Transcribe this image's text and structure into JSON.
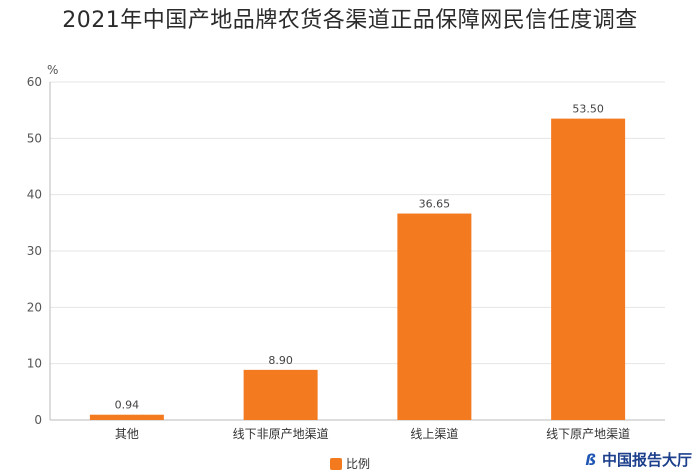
{
  "colors": {
    "bar": "#f47a20",
    "axis": "#bbbbbb",
    "grid": "#e4e4e4"
  },
  "chart_data": {
    "type": "bar",
    "title": "2021年中国产地品牌农货各渠道正品保障网民信任度调查",
    "ylabel": "%",
    "xlabel": "",
    "categories": [
      "其他",
      "线下非原产地渠道",
      "线上渠道",
      "线下原产地渠道"
    ],
    "series": [
      {
        "name": "比例",
        "values": [
          0.94,
          8.9,
          36.65,
          53.5
        ]
      }
    ],
    "data_labels": [
      "0.94",
      "8.90",
      "36.65",
      "53.50"
    ],
    "ylim": [
      0,
      60
    ],
    "yticks": [
      0,
      10,
      20,
      30,
      40,
      50,
      60
    ],
    "grid": true,
    "legend": "bottom-center"
  },
  "watermark": {
    "logo": "ß",
    "text": "中国报告大厅"
  }
}
